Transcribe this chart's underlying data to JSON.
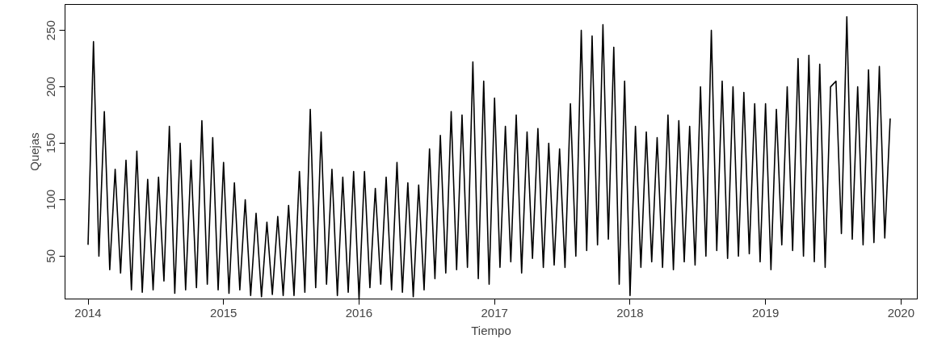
{
  "chart_data": {
    "type": "line",
    "xlabel": "Tiempo",
    "ylabel": "Quejas",
    "xlim": [
      2013.83,
      2020.12
    ],
    "ylim": [
      12,
      273
    ],
    "xticks": [
      2014,
      2015,
      2016,
      2017,
      2018,
      2019,
      2020
    ],
    "yticks": [
      50,
      100,
      150,
      200,
      250
    ],
    "grid": false,
    "marker": "none",
    "line_style": "solid",
    "series": [
      {
        "color": "#000000",
        "x": [
          2014.0,
          2014.04,
          2014.08,
          2014.12,
          2014.16,
          2014.2,
          2014.24,
          2014.28,
          2014.32,
          2014.36,
          2014.4,
          2014.44,
          2014.48,
          2014.52,
          2014.56,
          2014.6,
          2014.64,
          2014.68,
          2014.72,
          2014.76,
          2014.8,
          2014.84,
          2014.88,
          2014.92,
          2014.96,
          2015.0,
          2015.04,
          2015.08,
          2015.12,
          2015.16,
          2015.2,
          2015.24,
          2015.28,
          2015.32,
          2015.36,
          2015.4,
          2015.44,
          2015.48,
          2015.52,
          2015.56,
          2015.6,
          2015.64,
          2015.68,
          2015.72,
          2015.76,
          2015.8,
          2015.84,
          2015.88,
          2015.92,
          2015.96,
          2016.0,
          2016.04,
          2016.08,
          2016.12,
          2016.16,
          2016.2,
          2016.24,
          2016.28,
          2016.32,
          2016.36,
          2016.4,
          2016.44,
          2016.48,
          2016.52,
          2016.56,
          2016.6,
          2016.64,
          2016.68,
          2016.72,
          2016.76,
          2016.8,
          2016.84,
          2016.88,
          2016.92,
          2016.96,
          2017.0,
          2017.04,
          2017.08,
          2017.12,
          2017.16,
          2017.2,
          2017.24,
          2017.28,
          2017.32,
          2017.36,
          2017.4,
          2017.44,
          2017.48,
          2017.52,
          2017.56,
          2017.6,
          2017.64,
          2017.68,
          2017.72,
          2017.76,
          2017.8,
          2017.84,
          2017.88,
          2017.92,
          2017.96,
          2018.0,
          2018.04,
          2018.08,
          2018.12,
          2018.16,
          2018.2,
          2018.24,
          2018.28,
          2018.32,
          2018.36,
          2018.4,
          2018.44,
          2018.48,
          2018.52,
          2018.56,
          2018.6,
          2018.64,
          2018.68,
          2018.72,
          2018.76,
          2018.8,
          2018.84,
          2018.88,
          2018.92,
          2018.96,
          2019.0,
          2019.04,
          2019.08,
          2019.12,
          2019.16,
          2019.2,
          2019.24,
          2019.28,
          2019.32,
          2019.36,
          2019.4,
          2019.44,
          2019.48,
          2019.52,
          2019.56,
          2019.6,
          2019.64,
          2019.68,
          2019.72,
          2019.76,
          2019.8,
          2019.84,
          2019.88,
          2019.92
        ],
        "values": [
          60,
          240,
          50,
          178,
          38,
          127,
          35,
          135,
          20,
          143,
          18,
          118,
          20,
          120,
          28,
          165,
          17,
          150,
          20,
          135,
          22,
          170,
          25,
          155,
          20,
          133,
          17,
          115,
          20,
          100,
          15,
          88,
          14,
          80,
          16,
          85,
          15,
          95,
          15,
          125,
          18,
          180,
          22,
          160,
          25,
          127,
          15,
          120,
          18,
          125,
          12,
          125,
          22,
          110,
          25,
          120,
          20,
          133,
          18,
          115,
          14,
          113,
          20,
          145,
          30,
          157,
          35,
          178,
          38,
          175,
          40,
          222,
          30,
          205,
          25,
          190,
          40,
          165,
          45,
          175,
          35,
          160,
          48,
          163,
          40,
          150,
          42,
          145,
          40,
          185,
          50,
          250,
          55,
          245,
          60,
          255,
          65,
          235,
          25,
          205,
          15,
          165,
          40,
          160,
          45,
          155,
          40,
          175,
          38,
          170,
          45,
          165,
          42,
          200,
          50,
          250,
          55,
          205,
          48,
          200,
          50,
          195,
          52,
          185,
          45,
          185,
          38,
          180,
          60,
          200,
          55,
          225,
          50,
          228,
          45,
          220,
          40,
          200,
          205,
          70,
          262,
          65,
          200,
          60,
          215,
          62,
          218,
          66,
          172
        ]
      }
    ]
  }
}
